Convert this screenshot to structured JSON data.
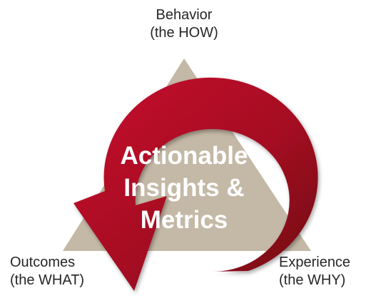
{
  "diagram": {
    "colors": {
      "triangle": "#c4b8a6",
      "arrow_light": "#c8102e",
      "arrow_dark": "#6b0a12",
      "center_text": "#ffffff",
      "label_text": "#262626"
    },
    "center": {
      "line1": "Actionable",
      "line2": "Insights &",
      "line3": "Metrics"
    },
    "top_label": {
      "line1": "Behavior",
      "line2": "(the HOW)"
    },
    "left_label": {
      "line1": "Outcomes",
      "line2": "(the WHAT)"
    },
    "right_label": {
      "line1": "Experience",
      "line2": "(the WHY)"
    }
  }
}
